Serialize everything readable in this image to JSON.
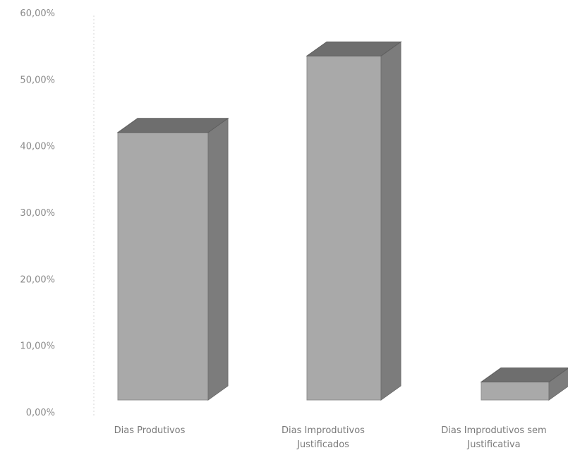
{
  "chart_data": {
    "type": "bar",
    "categories": [
      [
        "Dias Produtivos"
      ],
      [
        "Dias Improdutivos",
        "Justificados"
      ],
      [
        "Dias Improdutivos sem",
        "Justificativa"
      ]
    ],
    "values": [
      42.0,
      53.5,
      4.5
    ],
    "yticks": [
      "0,00%",
      "10,00%",
      "20,00%",
      "30,00%",
      "40,00%",
      "50,00%",
      "60,00%"
    ],
    "ylim": [
      0,
      60
    ],
    "grid": false,
    "legend": "none",
    "colors": {
      "front": "#a9a9a9",
      "side": "#7c7c7c",
      "top": "#6e6e6e",
      "axis": "#d4d4d4",
      "text": "#8a8a8a"
    }
  }
}
